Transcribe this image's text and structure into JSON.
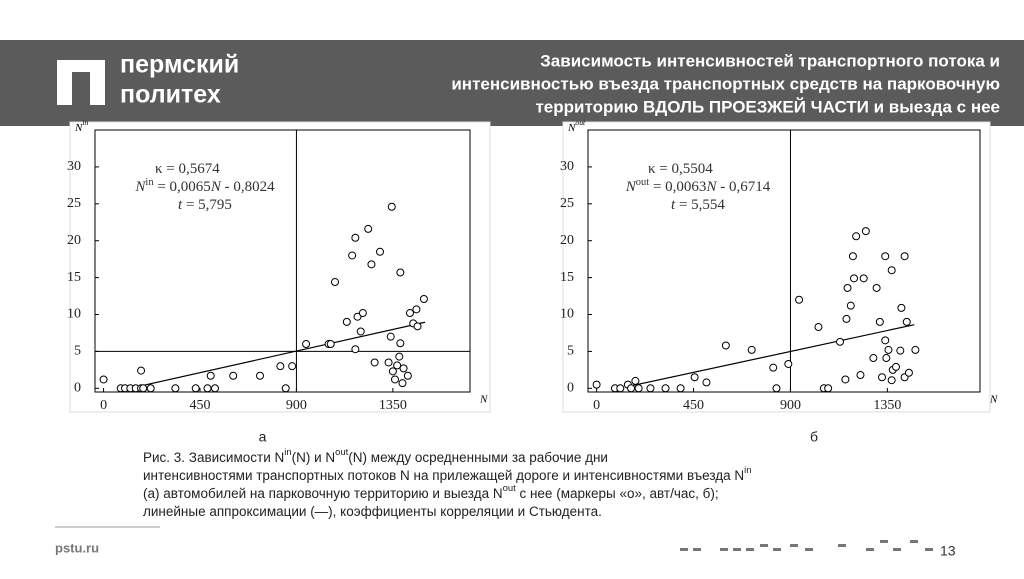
{
  "header": {
    "logo": [
      "пермский",
      "политех"
    ],
    "title": [
      "Зависимость интенсивностей транспортного потока и",
      "интенсивностью въезда транспортных средств на парковочную",
      "территорию ВДОЛЬ ПРОЕЗЖЕЙ ЧАСТИ и выезда с нее"
    ]
  },
  "chart_data": [
    {
      "type": "scatter",
      "label": "а",
      "ylabel": [
        "N",
        "in"
      ],
      "xlabel": "N",
      "annotation": [
        [
          "κ = 0,5674"
        ],
        [
          "N",
          "in",
          " = 0,0065",
          "N",
          " - 0,8024"
        ],
        [
          "t",
          " = 5,795"
        ]
      ],
      "x": [
        0,
        80,
        100,
        125,
        150,
        175,
        175,
        185,
        220,
        335,
        430,
        485,
        500,
        520,
        605,
        730,
        825,
        850,
        880,
        945,
        1050,
        1060,
        1080,
        1135,
        1160,
        1175,
        1175,
        1185,
        1200,
        1210,
        1235,
        1250,
        1265,
        1290,
        1330,
        1340,
        1345,
        1350,
        1360,
        1370,
        1380,
        1385,
        1385,
        1395,
        1400,
        1420,
        1430,
        1445,
        1460,
        1465,
        1495
      ],
      "y": [
        1.2,
        0,
        0,
        0,
        0,
        0,
        2.4,
        0,
        0,
        0,
        0,
        0,
        1.7,
        0,
        1.7,
        1.7,
        3,
        0,
        3,
        6,
        6,
        6,
        14.4,
        9,
        18,
        20.4,
        5.3,
        9.7,
        7.7,
        10.2,
        21.6,
        16.8,
        3.5,
        18.5,
        3.5,
        7,
        24.6,
        2.3,
        1.2,
        3.1,
        4.3,
        15.7,
        6.1,
        0.7,
        2.7,
        1.7,
        10.2,
        8.8,
        10.7,
        8.4,
        12.1
      ],
      "trend_x": [
        150,
        1500
      ],
      "trend_y": [
        0.17,
        8.95
      ],
      "xlim": [
        -40,
        1710
      ],
      "ylim": [
        -0.5,
        35
      ],
      "xticks": [
        0,
        450,
        900,
        1350
      ],
      "yticks": [
        0,
        5,
        10,
        15,
        20,
        25,
        30
      ],
      "vlines": [
        900
      ],
      "hlines": [
        5
      ],
      "color": "#000000"
    },
    {
      "type": "scatter",
      "label": "б",
      "ylabel": [
        "N",
        "out"
      ],
      "xlabel": "N",
      "annotation": [
        [
          "κ = 0,5504"
        ],
        [
          "N",
          "out",
          " = 0,0063",
          "N",
          " - 0,6714"
        ],
        [
          "t",
          " = 5,554"
        ]
      ],
      "x": [
        0,
        85,
        110,
        145,
        160,
        180,
        195,
        250,
        320,
        390,
        455,
        510,
        600,
        720,
        835,
        820,
        890,
        940,
        1030,
        1055,
        1075,
        1130,
        1155,
        1160,
        1165,
        1180,
        1190,
        1195,
        1205,
        1225,
        1240,
        1250,
        1285,
        1300,
        1315,
        1325,
        1340,
        1340,
        1345,
        1355,
        1370,
        1370,
        1375,
        1390,
        1410,
        1415,
        1430,
        1430,
        1440,
        1450,
        1480
      ],
      "y": [
        0.5,
        0,
        0,
        0.5,
        0,
        1,
        0,
        0,
        0,
        0,
        1.5,
        0.8,
        5.8,
        5.2,
        0,
        2.8,
        3.3,
        12,
        8.3,
        0,
        0,
        6.3,
        1.2,
        9.4,
        13.6,
        11.2,
        17.9,
        14.9,
        20.6,
        1.8,
        14.9,
        21.3,
        4.1,
        13.6,
        9,
        1.5,
        17.9,
        6.5,
        4.1,
        5.2,
        1.1,
        16,
        2.5,
        2.9,
        5.1,
        10.9,
        17.9,
        1.5,
        9,
        2.1,
        5.2
      ],
      "trend_x": [
        150,
        1475
      ],
      "trend_y": [
        0.27,
        8.62
      ],
      "xlim": [
        -40,
        1780
      ],
      "ylim": [
        -0.5,
        35
      ],
      "xticks": [
        0,
        450,
        900,
        1350
      ],
      "yticks": [
        0,
        5,
        10,
        15,
        20,
        25,
        30
      ],
      "vlines": [
        900
      ],
      "hlines": [],
      "color": "#000000"
    }
  ],
  "caption": [
    [
      "Рис. 3. Зависимости ",
      "N",
      "in",
      "(N)",
      " и ",
      "N",
      "out",
      "(N)",
      " между осредненными за рабочие дни"
    ],
    [
      "интенсивностями транспортных потоков N на прилежащей дороге и интенсивностями въезда ",
      "N",
      "in"
    ],
    [
      "(а) автомобилей на парковочную территорию и выезда ",
      "N",
      "out",
      " с нее (маркеры «о», авт/час, б);"
    ],
    [
      "линейные аппроксимации (—), коэффициенты корреляции и Стьюдента."
    ]
  ],
  "footer": {
    "site": "pstu.ru",
    "page": "13"
  }
}
